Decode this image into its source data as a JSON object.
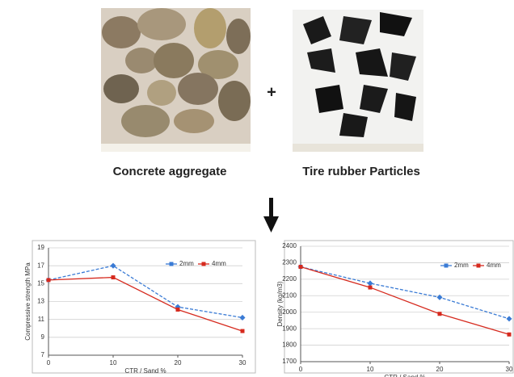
{
  "labels": {
    "left_caption": "Concrete aggregate",
    "plus_sign": "+",
    "right_caption": "Tire rubber Particles"
  },
  "chart_data": [
    {
      "type": "line",
      "x": [
        0,
        10,
        20,
        30
      ],
      "xlim": [
        0,
        30
      ],
      "xticks": [
        0,
        10,
        20,
        30
      ],
      "ylim": [
        7,
        19
      ],
      "yticks": [
        7,
        9,
        11,
        13,
        15,
        17,
        19
      ],
      "grid": true,
      "ylabel": "Compressive strength MPa",
      "xlabel": "CTR / Sand %",
      "series": [
        {
          "name": "2mm",
          "color": "#3a7bd5",
          "values": [
            15.4,
            17.0,
            12.4,
            11.2
          ]
        },
        {
          "name": "4mm",
          "color": "#d62a1e",
          "values": [
            15.4,
            15.7,
            12.1,
            9.7
          ]
        }
      ]
    },
    {
      "type": "line",
      "x": [
        0,
        10,
        20,
        30
      ],
      "xlim": [
        0,
        30
      ],
      "xticks": [
        0,
        10,
        20,
        30
      ],
      "ylim": [
        1700,
        2400
      ],
      "yticks": [
        1700,
        1800,
        1900,
        2000,
        2100,
        2200,
        2300,
        2400
      ],
      "grid": true,
      "ylabel": "Density (kg/m3)",
      "xlabel": "CTR / Sand %",
      "series": [
        {
          "name": "2mm",
          "color": "#3a7bd5",
          "values": [
            2275,
            2175,
            2090,
            1960
          ]
        },
        {
          "name": "4mm",
          "color": "#d62a1e",
          "values": [
            2275,
            2150,
            1990,
            1865
          ]
        }
      ]
    }
  ]
}
